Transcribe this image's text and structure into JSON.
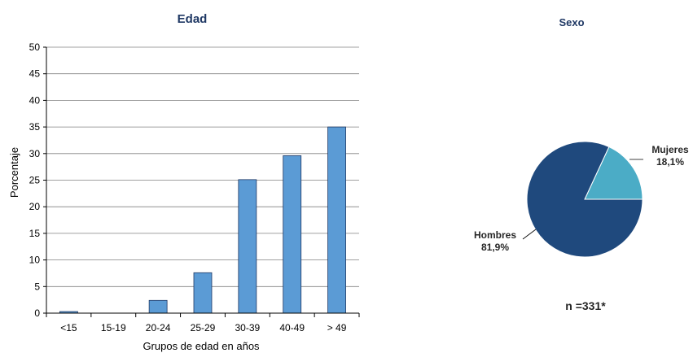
{
  "chart_data": [
    {
      "type": "bar",
      "title": "Edad",
      "xlabel": "Grupos de edad en años",
      "ylabel": "Porcentaje",
      "categories": [
        "<15",
        "15-19",
        "20-24",
        "25-29",
        "30-39",
        "40-49",
        "> 49"
      ],
      "values": [
        0.3,
        0,
        2.4,
        7.6,
        25.1,
        29.6,
        35.0
      ],
      "ylim": [
        0,
        50
      ],
      "yticks": [
        0,
        5,
        10,
        15,
        20,
        25,
        30,
        35,
        40,
        45,
        50
      ],
      "grid": true,
      "bar_color": "#5b9bd5"
    },
    {
      "type": "pie",
      "title": "Sexo",
      "slices": [
        {
          "name": "Mujeres",
          "label": "18,1%",
          "value": 18.1,
          "color": "#4bacc6"
        },
        {
          "name": "Hombres",
          "label": "81,9%",
          "value": 81.9,
          "color": "#1f497d"
        }
      ],
      "note": "n =331*"
    }
  ],
  "colors": {
    "title": "#1f3864",
    "axis": "#000000",
    "grid": "#808080"
  }
}
